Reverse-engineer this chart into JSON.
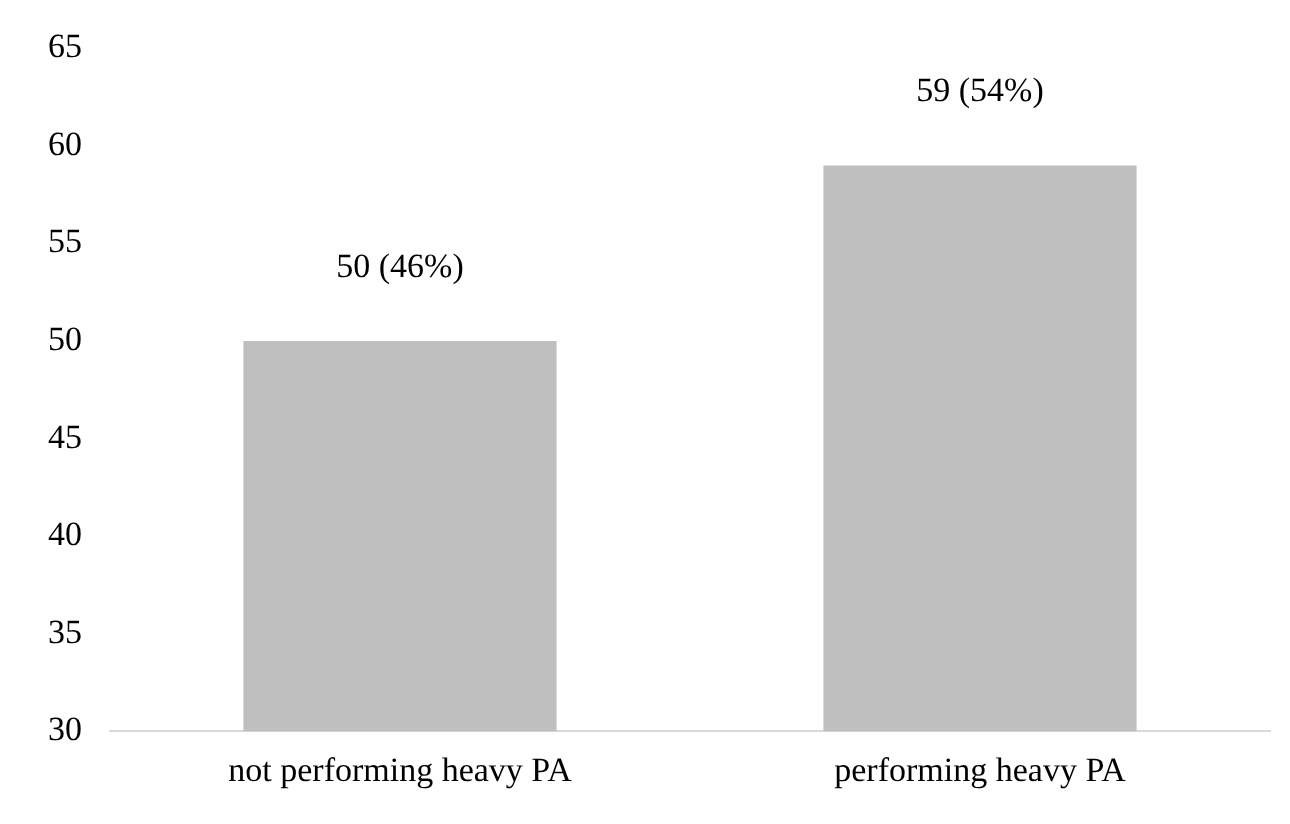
{
  "chart_data": {
    "type": "bar",
    "categories": [
      "not performing heavy PA",
      "performing heavy PA"
    ],
    "values": [
      50,
      59
    ],
    "value_labels": [
      "50 (46%)",
      "59 (54%)"
    ],
    "color": "#bfbfbf",
    "ylim": [
      30,
      65
    ],
    "yticks": [
      30,
      35,
      40,
      45,
      50,
      55,
      60,
      65
    ],
    "grid": false,
    "legend": false
  }
}
